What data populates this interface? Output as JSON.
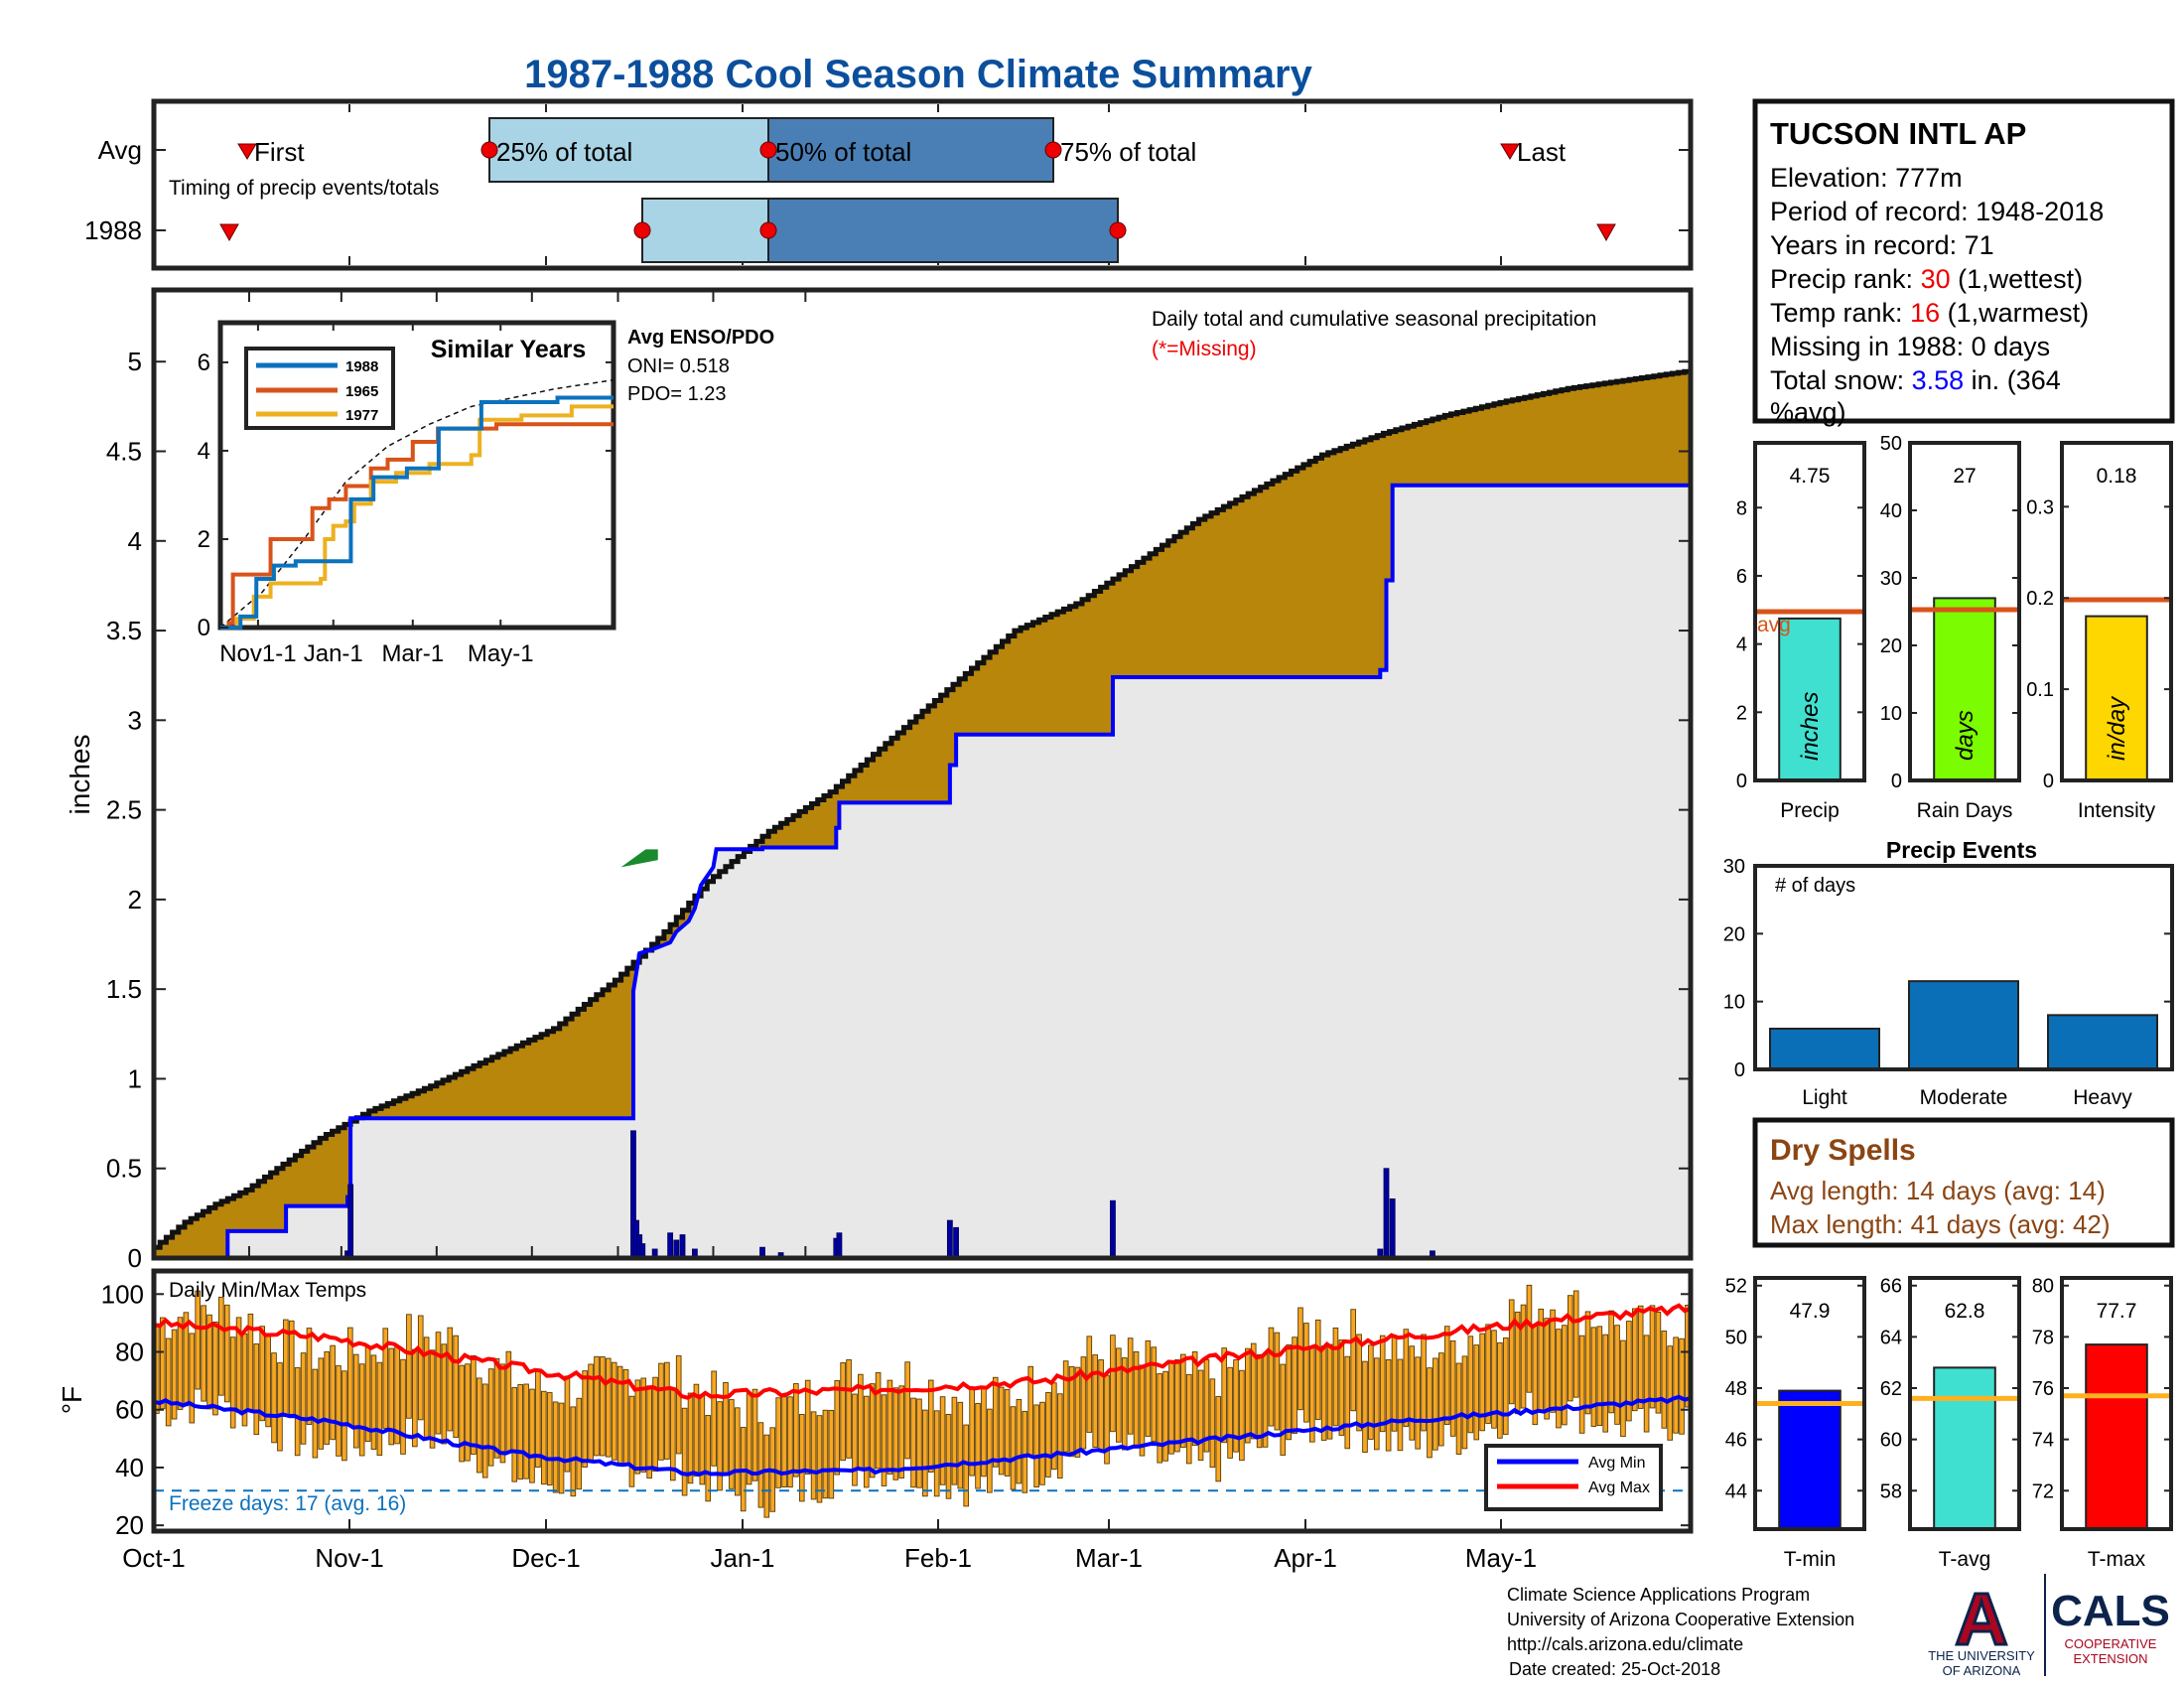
{
  "title": "1987-1988 Cool Season Climate Summary",
  "timing": {
    "row_labels": [
      "Avg",
      "1988"
    ],
    "caption": "Timing of precip events/totals",
    "first_label": "First",
    "last_label": "Last",
    "pct_labels": [
      "25% of total",
      "50% of total",
      "75% of total"
    ]
  },
  "station": {
    "name": "TUCSON INTL AP",
    "elevation_label": "Elevation:",
    "elevation": "777m",
    "period_label": "Period of record:",
    "period": "1948-2018",
    "years_label": "Years in record:",
    "years": "71",
    "precip_rank_label": "Precip rank:",
    "precip_rank": "30",
    "precip_rank_note": "(1,wettest)",
    "temp_rank_label": "Temp rank:",
    "temp_rank": "16",
    "temp_rank_note": "(1,warmest)",
    "missing_label": "Missing in 1988:",
    "missing": "0 days",
    "snow_label": "Total snow:",
    "snow_value": "3.58",
    "snow_unit": "in. (364",
    "snow_pct": "%avg)"
  },
  "main_chart": {
    "ylabel": "inches",
    "note": "Daily total and cumulative seasonal precipitation",
    "missing_note": "(*=Missing)",
    "yticks": [
      "0",
      "0.5",
      "1",
      "1.5",
      "2",
      "2.5",
      "3",
      "3.5",
      "4",
      "4.5",
      "5"
    ]
  },
  "inset": {
    "title": "Similar Years",
    "yticks": [
      "0",
      "2",
      "4",
      "6"
    ],
    "xticks": [
      "Nov1-1",
      "Jan-1",
      "Mar-1",
      "May-1"
    ],
    "enso_title": "Avg ENSO/PDO",
    "oni": "ONI= 0.518",
    "pdo": "PDO= 1.23"
  },
  "temp_chart": {
    "ylabel": "°F",
    "title": "Daily Min/Max Temps",
    "freeze_note": "Freeze days: 17 (avg. 16)",
    "yticks": [
      "20",
      "40",
      "60",
      "80",
      "100"
    ],
    "legend_min": "Avg Min",
    "legend_max": "Avg Max"
  },
  "xaxis_months": [
    "Oct-1",
    "Nov-1",
    "Dec-1",
    "Jan-1",
    "Feb-1",
    "Mar-1",
    "Apr-1",
    "May-1"
  ],
  "bar_panels": {
    "precip": {
      "value_label": "4.75",
      "inner": "inches",
      "xlabel": "Precip",
      "avg_label": "avg",
      "yticks": [
        "0",
        "2",
        "4",
        "6",
        "8"
      ]
    },
    "raindays": {
      "value_label": "27",
      "inner": "days",
      "xlabel": "Rain Days",
      "yticks": [
        "0",
        "10",
        "20",
        "30",
        "40",
        "50"
      ]
    },
    "intensity": {
      "value_label": "0.18",
      "inner": "in/day",
      "xlabel": "Intensity",
      "yticks": [
        "0",
        "0.1",
        "0.2",
        "0.3"
      ]
    }
  },
  "events": {
    "title": "Precip Events",
    "label": "# of days",
    "yticks": [
      "0",
      "10",
      "20",
      "30"
    ],
    "categories": [
      "Light",
      "Moderate",
      "Heavy"
    ]
  },
  "dry_spells": {
    "title": "Dry Spells",
    "avg": "Avg length: 14 days (avg: 14)",
    "max": "Max length: 41 days (avg: 42)"
  },
  "temp_panels": {
    "tmin": {
      "value_label": "47.9",
      "xlabel": "T-min",
      "yticks": [
        "44",
        "46",
        "48",
        "50",
        "52"
      ]
    },
    "tavg": {
      "value_label": "62.8",
      "xlabel": "T-avg",
      "yticks": [
        "58",
        "60",
        "62",
        "64",
        "66"
      ]
    },
    "tmax": {
      "value_label": "77.7",
      "xlabel": "T-max",
      "yticks": [
        "72",
        "74",
        "76",
        "78",
        "80"
      ]
    }
  },
  "footer": {
    "line1": "Climate Science Applications Program",
    "line2": "University of Arizona Cooperative Extension",
    "line3": "http://cals.arizona.edu/climate",
    "line4": "Date created: 25-Oct-2018",
    "ua_logo_letter": "A",
    "ua_text1": "THE UNIVERSITY",
    "ua_text2": "OF ARIZONA",
    "cals": "CALS",
    "cals_sub1": "COOPERATIVE",
    "cals_sub2": "EXTENSION"
  },
  "colors": {
    "title": "#0b4f9c",
    "light_blue": "#a9d4e6",
    "dark_blue": "#4a7fb5",
    "brown": "#b8860b",
    "gray_fill": "#e8e8e8",
    "series_blue": "#0000ff",
    "red": "#ff0000",
    "orange_avg": "#d95319",
    "temp_bar": "#f5a623",
    "event_bar": "#0a6fb6",
    "dry_spell_text": "#8b4513",
    "ua_navy": "#0c234b",
    "ua_red": "#ab0520"
  },
  "chart_data": [
    {
      "type": "area",
      "title": "Daily total and cumulative seasonal precipitation",
      "ylabel": "inches",
      "ylim": [
        0,
        5.4
      ],
      "x_units": "days since Oct-1",
      "series": [
        {
          "name": "Avg cumulative",
          "points": [
            [
              0,
              0.06
            ],
            [
              10,
              0.2
            ],
            [
              20,
              0.3
            ],
            [
              30,
              0.38
            ],
            [
              40,
              0.5
            ],
            [
              55,
              0.68
            ],
            [
              70,
              0.82
            ],
            [
              90,
              0.96
            ],
            [
              110,
              1.12
            ],
            [
              130,
              1.28
            ],
            [
              150,
              1.55
            ],
            [
              165,
              1.8
            ],
            [
              180,
              2.1
            ],
            [
              200,
              2.38
            ],
            [
              220,
              2.6
            ],
            [
              240,
              2.9
            ],
            [
              260,
              3.2
            ],
            [
              280,
              3.5
            ],
            [
              300,
              3.65
            ],
            [
              320,
              3.88
            ],
            [
              340,
              4.12
            ],
            [
              360,
              4.3
            ],
            [
              380,
              4.48
            ],
            [
              400,
              4.6
            ],
            [
              420,
              4.7
            ],
            [
              440,
              4.78
            ],
            [
              460,
              4.85
            ],
            [
              480,
              4.9
            ],
            [
              500,
              4.95
            ]
          ]
        },
        {
          "name": "1988 cumulative",
          "points": [
            [
              0,
              0
            ],
            [
              24,
              0
            ],
            [
              24,
              0.15
            ],
            [
              43,
              0.15
            ],
            [
              43,
              0.29
            ],
            [
              63,
              0.29
            ],
            [
              63,
              0.34
            ],
            [
              64,
              0.34
            ],
            [
              64,
              0.78
            ],
            [
              156,
              0.78
            ],
            [
              156,
              1.49
            ],
            [
              158,
              1.7
            ],
            [
              162,
              1.72
            ],
            [
              168,
              1.76
            ],
            [
              170,
              1.82
            ],
            [
              174,
              1.88
            ],
            [
              176,
              1.95
            ],
            [
              178,
              2.08
            ],
            [
              182,
              2.18
            ],
            [
              183,
              2.28
            ],
            [
              198,
              2.28
            ],
            [
              198,
              2.29
            ],
            [
              222,
              2.29
            ],
            [
              222,
              2.4
            ],
            [
              223,
              2.4
            ],
            [
              223,
              2.54
            ],
            [
              259,
              2.54
            ],
            [
              259,
              2.75
            ],
            [
              261,
              2.75
            ],
            [
              261,
              2.92
            ],
            [
              312,
              2.92
            ],
            [
              312,
              3.24
            ],
            [
              399,
              3.24
            ],
            [
              399,
              3.28
            ],
            [
              401,
              3.28
            ],
            [
              401,
              3.78
            ],
            [
              403,
              3.78
            ],
            [
              403,
              4.31
            ],
            [
              500,
              4.31
            ]
          ]
        }
      ],
      "daily_bars": {
        "name": "1988 daily",
        "points": [
          [
            63,
            0.04
          ],
          [
            64,
            0.41
          ],
          [
            156,
            0.71
          ],
          [
            157,
            0.21
          ],
          [
            158,
            0.13
          ],
          [
            159,
            0.08
          ],
          [
            163,
            0.05
          ],
          [
            168,
            0.14
          ],
          [
            170,
            0.1
          ],
          [
            172,
            0.13
          ],
          [
            176,
            0.05
          ],
          [
            198,
            0.06
          ],
          [
            204,
            0.03
          ],
          [
            222,
            0.11
          ],
          [
            223,
            0.14
          ],
          [
            259,
            0.21
          ],
          [
            261,
            0.17
          ],
          [
            312,
            0.32
          ],
          [
            399,
            0.05
          ],
          [
            401,
            0.5
          ],
          [
            403,
            0.33
          ],
          [
            416,
            0.04
          ]
        ]
      }
    },
    {
      "type": "line",
      "title": "Similar Years",
      "ylim": [
        0,
        6
      ],
      "x_units": "days since Oct-1",
      "series": [
        {
          "name": "1988",
          "points": [
            [
              0,
              0
            ],
            [
              24,
              0.1
            ],
            [
              24,
              0.25
            ],
            [
              43,
              0.25
            ],
            [
              43,
              1.1
            ],
            [
              64,
              1.1
            ],
            [
              64,
              1.4
            ],
            [
              90,
              1.5
            ],
            [
              156,
              1.5
            ],
            [
              156,
              2.9
            ],
            [
              183,
              3.4
            ],
            [
              223,
              3.6
            ],
            [
              261,
              3.6
            ],
            [
              261,
              4.5
            ],
            [
              312,
              4.5
            ],
            [
              312,
              5.1
            ],
            [
              403,
              5.1
            ],
            [
              403,
              5.2
            ],
            [
              470,
              5.2
            ]
          ]
        },
        {
          "name": "1965",
          "points": [
            [
              0,
              0
            ],
            [
              10,
              0.1
            ],
            [
              15,
              1.2
            ],
            [
              40,
              1.2
            ],
            [
              60,
              2.0
            ],
            [
              95,
              2.0
            ],
            [
              110,
              2.7
            ],
            [
              130,
              2.9
            ],
            [
              150,
              3.2
            ],
            [
              180,
              3.6
            ],
            [
              200,
              3.8
            ],
            [
              230,
              4.2
            ],
            [
              260,
              4.5
            ],
            [
              300,
              4.5
            ],
            [
              330,
              4.6
            ],
            [
              470,
              4.6
            ]
          ]
        },
        {
          "name": "1977",
          "points": [
            [
              0,
              0
            ],
            [
              20,
              0.2
            ],
            [
              40,
              0.7
            ],
            [
              60,
              1.0
            ],
            [
              120,
              1.1
            ],
            [
              125,
              2.0
            ],
            [
              135,
              2.3
            ],
            [
              150,
              2.4
            ],
            [
              160,
              2.8
            ],
            [
              180,
              3.3
            ],
            [
              210,
              3.5
            ],
            [
              250,
              3.7
            ],
            [
              280,
              3.7
            ],
            [
              300,
              3.9
            ],
            [
              310,
              4.7
            ],
            [
              360,
              4.8
            ],
            [
              420,
              5.0
            ],
            [
              470,
              5.0
            ]
          ]
        },
        {
          "name": "Avg (dashed)",
          "points": [
            [
              0,
              0
            ],
            [
              50,
              0.8
            ],
            [
              100,
              2.0
            ],
            [
              150,
              3.3
            ],
            [
              200,
              4.1
            ],
            [
              250,
              4.6
            ],
            [
              300,
              5.0
            ],
            [
              400,
              5.4
            ],
            [
              470,
              5.6
            ]
          ]
        }
      ]
    },
    {
      "type": "bar",
      "title": "Daily Min/Max Temps",
      "ylabel": "°F",
      "ylim": [
        18,
        108
      ],
      "freeze_threshold": 32,
      "x_units": "days since Oct-1",
      "series": [
        {
          "name": "Avg Max",
          "points": [
            [
              0,
              90
            ],
            [
              30,
              85
            ],
            [
              61,
              75
            ],
            [
              92,
              65
            ],
            [
              123,
              67
            ],
            [
              151,
              70
            ],
            [
              182,
              78
            ],
            [
              212,
              85
            ],
            [
              243,
              92
            ],
            [
              262,
              95
            ]
          ]
        },
        {
          "name": "Avg Min",
          "points": [
            [
              0,
              63
            ],
            [
              30,
              56
            ],
            [
              61,
              45
            ],
            [
              92,
              38
            ],
            [
              123,
              39
            ],
            [
              151,
              44
            ],
            [
              182,
              50
            ],
            [
              212,
              56
            ],
            [
              243,
              61
            ],
            [
              262,
              64
            ]
          ]
        }
      ]
    },
    {
      "type": "bar",
      "categories": [
        "Precip"
      ],
      "values": [
        4.75
      ],
      "avg": 4.95,
      "ylim": [
        0,
        9.9
      ]
    },
    {
      "type": "bar",
      "categories": [
        "Rain Days"
      ],
      "values": [
        27
      ],
      "avg": 25.3,
      "ylim": [
        0,
        50
      ]
    },
    {
      "type": "bar",
      "categories": [
        "Intensity"
      ],
      "values": [
        0.18
      ],
      "avg": 0.198,
      "ylim": [
        0,
        0.37
      ]
    },
    {
      "type": "bar",
      "title": "Precip Events",
      "categories": [
        "Light",
        "Moderate",
        "Heavy"
      ],
      "values": [
        6,
        13,
        8
      ],
      "ylim": [
        0,
        30
      ]
    },
    {
      "type": "bar",
      "categories": [
        "T-min"
      ],
      "values": [
        47.9
      ],
      "avg": 47.4,
      "ylim": [
        42.5,
        52.3
      ]
    },
    {
      "type": "bar",
      "categories": [
        "T-avg"
      ],
      "values": [
        62.8
      ],
      "avg": 61.6,
      "ylim": [
        56.5,
        66.3
      ]
    },
    {
      "type": "bar",
      "categories": [
        "T-max"
      ],
      "values": [
        77.7
      ],
      "avg": 75.7,
      "ylim": [
        70.5,
        80.3
      ]
    }
  ]
}
